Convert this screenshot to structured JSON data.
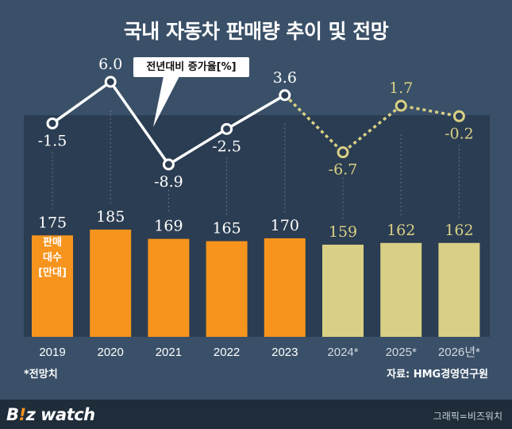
{
  "title": "국내 자동차 판매량 추이 및 전망",
  "callout_label": "전년대비 증가율[%]",
  "bar_note": [
    "판매",
    "대수",
    "[만대]"
  ],
  "footnote_left": "*전망치",
  "source": "자료: HMG경영연구원",
  "brand": {
    "prefix": "B",
    "accent": "!",
    "rest": "z watch"
  },
  "credit": "그래픽=비즈워치",
  "colors": {
    "background": "#3a5068",
    "panel": "#2b3d52",
    "actual_bar": "#f7941d",
    "forecast_bar": "#d9d085",
    "actual_line": "#ffffff",
    "forecast_line": "#d9d085",
    "footer": "#1f2c3a"
  },
  "chart_data": {
    "type": "bar+line",
    "categories": [
      "2019",
      "2020",
      "2021",
      "2022",
      "2023",
      "2024*",
      "2025*",
      "2026년*"
    ],
    "forecast_from_index": 5,
    "series": [
      {
        "name": "판매대수",
        "unit": "만대",
        "type": "bar",
        "values": [
          175,
          185,
          169,
          165,
          170,
          159,
          162,
          162
        ]
      },
      {
        "name": "전년대비 증가율[%]",
        "type": "line",
        "values": [
          -1.5,
          6.0,
          -8.9,
          -2.5,
          3.6,
          -6.7,
          1.7,
          -0.2
        ]
      }
    ],
    "line_labels": [
      "-1.5",
      "6.0",
      "-8.9",
      "-2.5",
      "3.6",
      "-6.7",
      "1.7",
      "-0.2"
    ]
  }
}
